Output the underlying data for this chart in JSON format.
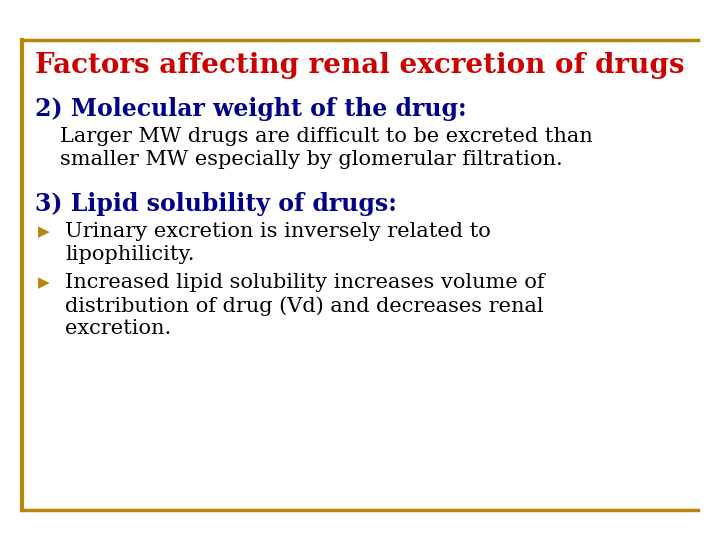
{
  "title": "Factors affecting renal excretion of drugs",
  "title_color": "#CC0000",
  "title_fontsize": 20,
  "bg_color": "#FFFFFF",
  "border_color": "#B8860B",
  "section2_heading": "2) Molecular weight of the drug",
  "section2_colon": ":",
  "section2_color": "#00008B",
  "section2_fontsize": 17,
  "section2_body_line1": "Larger MW drugs are difficult to be excreted than",
  "section2_body_line2": "smaller MW especially by glomerular filtration.",
  "section2_body_color": "#000000",
  "section2_body_fontsize": 15,
  "section3_heading": "3) Lipid solubility of drugs",
  "section3_colon": ":",
  "section3_color": "#00008B",
  "section3_fontsize": 17,
  "bullet_color": "#B8860B",
  "bullet_char": "▶",
  "bullet1_line1": "Urinary excretion is inversely related to",
  "bullet1_line2": "lipophilicity.",
  "bullet2_line1": "Increased lipid solubility increases volume of",
  "bullet2_line2": "distribution of drug (Vd) and decreases renal",
  "bullet2_line3": "excretion.",
  "bullet_fontsize": 15,
  "bullet_text_color": "#000000",
  "line_color": "#B8860B"
}
